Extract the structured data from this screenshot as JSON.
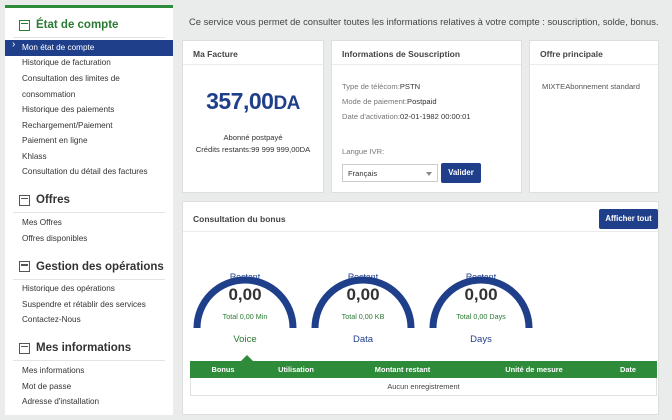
{
  "sidebar": {
    "sections": [
      {
        "title": "État de compte",
        "items": [
          "Mon état de compte",
          "Historique de facturation",
          "Consultation des limites de consommation",
          "Historique des paiements",
          "Rechargement/Paiement",
          "Paiement en ligne",
          "Khlass",
          "Consultation du détail des factures"
        ]
      },
      {
        "title": "Offres",
        "items": [
          "Mes Offres",
          "Offres disponibles"
        ]
      },
      {
        "title": "Gestion des opérations",
        "items": [
          "Historique des opérations",
          "Suspendre et rétablir des services",
          "Contactez-Nous"
        ]
      },
      {
        "title": "Mes informations",
        "items": [
          "Mes informations",
          "Mot de passe",
          "Adresse d'installation"
        ]
      }
    ]
  },
  "intro": "Ce service vous permet de consulter toutes les informations relatives à votre compte : souscription, solde, bonus.",
  "facture": {
    "title": "Ma Facture",
    "amount": "357,00",
    "currency": "DA",
    "subscriber_type": "Abonné postpayé",
    "credits": "Crédits restants:99 999 999,00DA"
  },
  "souscription": {
    "title": "Informations de Souscription",
    "telecom_label": "Type de télécom:",
    "telecom_value": "PSTN",
    "payment_label": "Mode de paiement:",
    "payment_value": "Postpaid",
    "activation_label": "Date d'activation:",
    "activation_value": "02-01-1982 00:00:01",
    "ivr_label": "Langue IVR:",
    "ivr_selected": "Français",
    "validate_label": "Valider"
  },
  "offre": {
    "title": "Offre principale",
    "text": "MIXTEAbonnement standard"
  },
  "bonus": {
    "title": "Consultation du bonus",
    "show_all_label": "Afficher tout",
    "gauges": [
      {
        "restant": "Restant",
        "value": "0,00",
        "total": "Total 0,00 Min",
        "name": "Voice"
      },
      {
        "restant": "Restant",
        "value": "0,00",
        "total": "Total 0,00 KB",
        "name": "Data"
      },
      {
        "restant": "Restant",
        "value": "0,00",
        "total": "Total 0,00 Days",
        "name": "Days"
      }
    ],
    "table": {
      "headers": [
        "Bonus",
        "Utilisation",
        "Montant restant",
        "Unité de mesure",
        "Date"
      ],
      "empty_text": "Aucun enregistrement"
    }
  },
  "colors": {
    "green": "#2e8b3a",
    "blue": "#1f3f8a"
  },
  "icons": {
    "section": "list-icon",
    "active_marker": "chevron-right-icon",
    "select": "caret-down-icon"
  }
}
